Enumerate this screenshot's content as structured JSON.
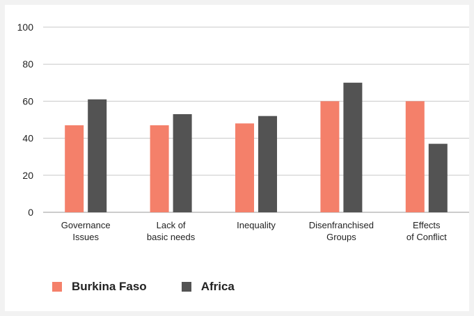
{
  "chart_data": {
    "type": "bar",
    "categories": [
      [
        "Governance",
        "Issues"
      ],
      [
        "Lack of",
        "basic needs"
      ],
      [
        "Inequality"
      ],
      [
        "Disenfranchised",
        "Groups"
      ],
      [
        "Effects",
        "of Conflict"
      ]
    ],
    "series": [
      {
        "name": "Burkina Faso",
        "color": "#f4806a",
        "values": [
          47,
          47,
          48,
          60,
          60
        ]
      },
      {
        "name": "Africa",
        "color": "#535353",
        "values": [
          61,
          53,
          52,
          70,
          37
        ]
      }
    ],
    "ylim": [
      0,
      100
    ],
    "yticks": [
      0,
      20,
      40,
      60,
      80,
      100
    ],
    "grid": true,
    "legend_position": "bottom-left"
  }
}
